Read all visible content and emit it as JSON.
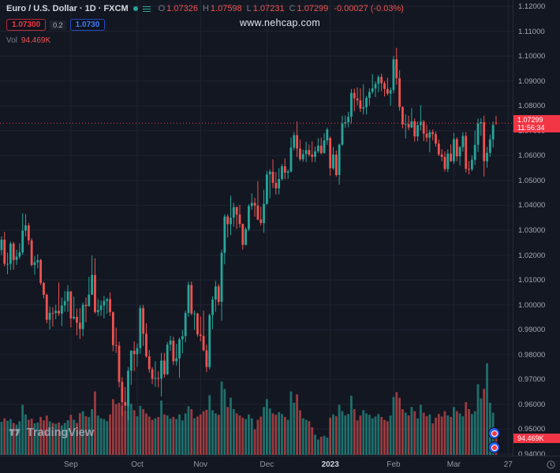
{
  "colors": {
    "bg": "#131722",
    "grid": "#202531",
    "up": "#26a69a",
    "down": "#ef5350",
    "up_vol": "rgba(38,166,154,0.62)",
    "down_vol": "rgba(239,83,80,0.62)",
    "accent": "#f23645",
    "buy_blue": "#2962ff",
    "text": "#d1d4dc",
    "muted": "#787b86",
    "axis_text": "#a6a9b3"
  },
  "header": {
    "symbol_title": "Euro / U.S. Dollar · 1D · FXCM",
    "ohlc": {
      "items": [
        {
          "label": "O",
          "value": "1.07326"
        },
        {
          "label": "H",
          "value": "1.07598"
        },
        {
          "label": "L",
          "value": "1.07231"
        },
        {
          "label": "C",
          "value": "1.07299"
        }
      ],
      "change": "-0.00027 (-0.03%)"
    },
    "trade_buttons": {
      "sell": "1.07300",
      "spread": "0.2",
      "buy": "1.0730"
    },
    "volume_label": "Vol",
    "volume_value": "94.469K",
    "watermark": "www.nehcap.com"
  },
  "price_axis": {
    "labels": [
      "1.12000",
      "1.11000",
      "1.10000",
      "1.09000",
      "1.08000",
      "1.07000",
      "1.06000",
      "1.05000",
      "1.04000",
      "1.03000",
      "1.02000",
      "1.01000",
      "1.00000",
      "0.99000",
      "0.98000",
      "0.97000",
      "0.96000",
      "0.95000",
      "0.94000"
    ]
  },
  "time_axis": {
    "labels": [
      {
        "label": "Sep",
        "i": 23
      },
      {
        "label": "Oct",
        "i": 45
      },
      {
        "label": "Nov",
        "i": 66
      },
      {
        "label": "Dec",
        "i": 88
      },
      {
        "label": "2023",
        "i": 109,
        "major": true
      },
      {
        "label": "Feb",
        "i": 130
      },
      {
        "label": "Mar",
        "i": 150
      },
      {
        "label": "27",
        "i": 168
      }
    ]
  },
  "price_marker": {
    "price": "1.07299",
    "countdown": "11:56:34"
  },
  "volume_marker": "94.469K",
  "footer": {
    "logo_text": "TradingView"
  },
  "chart_data": {
    "type": "candlestick+volume",
    "title": "Euro / U.S. Dollar 1D FXCM",
    "ylim": [
      0.94,
      1.12
    ],
    "slots": 170,
    "legend_last_bar": {
      "open": 1.07326,
      "high": 1.07598,
      "low": 1.07231,
      "close": 1.07299,
      "change": -0.00027,
      "change_pct": -0.03,
      "volume_k": 94.469
    },
    "candles": [
      [
        1.022,
        1.0275,
        1.02,
        1.0262
      ],
      [
        1.0262,
        1.0293,
        1.0155,
        1.0165
      ],
      [
        1.0165,
        1.021,
        1.0123,
        1.0165
      ],
      [
        1.0165,
        1.0254,
        1.014,
        1.0246
      ],
      [
        1.0246,
        1.0253,
        1.0141,
        1.018
      ],
      [
        1.018,
        1.0221,
        1.016,
        1.0194
      ],
      [
        1.0194,
        1.0248,
        1.0185,
        1.0211
      ],
      [
        1.0211,
        1.0368,
        1.0202,
        1.0298
      ],
      [
        1.0298,
        1.0365,
        1.0276,
        1.0319
      ],
      [
        1.0319,
        1.0329,
        1.0241,
        1.0259
      ],
      [
        1.0259,
        1.0268,
        1.0154,
        1.016
      ],
      [
        1.016,
        1.0196,
        1.0121,
        1.0171
      ],
      [
        1.0171,
        1.0203,
        1.0147,
        1.018
      ],
      [
        1.018,
        1.0185,
        1.0079,
        1.0088
      ],
      [
        1.0088,
        1.0092,
        1.0026,
        1.004
      ],
      [
        1.004,
        1.0046,
        0.9926,
        0.994
      ],
      [
        0.994,
        0.9993,
        0.9901,
        0.9968
      ],
      [
        0.9968,
        0.999,
        0.9912,
        0.9967
      ],
      [
        0.9967,
        1.0,
        0.9942,
        0.9976
      ],
      [
        0.9976,
        1.009,
        0.9956,
        0.9965
      ],
      [
        0.9965,
        1.0028,
        0.9914,
        0.9997
      ],
      [
        0.9997,
        1.0055,
        0.9972,
        1.0015
      ],
      [
        1.0015,
        1.0079,
        0.9972,
        1.0054
      ],
      [
        1.0054,
        1.0055,
        0.991,
        0.9945
      ],
      [
        0.9945,
        1.0033,
        0.994,
        0.9952
      ],
      [
        0.9952,
        0.9985,
        0.9878,
        0.9928
      ],
      [
        0.9928,
        0.9987,
        0.9863,
        0.9903
      ],
      [
        0.9903,
        1.0009,
        0.9874,
        1.0
      ],
      [
        1.0,
        1.0029,
        0.993,
        0.9995
      ],
      [
        0.9995,
        1.0113,
        0.9993,
        1.0041
      ],
      [
        1.0041,
        1.0198,
        1.004,
        1.012
      ],
      [
        1.012,
        1.0187,
        0.9965,
        0.9971
      ],
      [
        0.9971,
        1.0023,
        0.9955,
        0.9979
      ],
      [
        0.9979,
        1.0018,
        0.9955,
        0.9997
      ],
      [
        0.9997,
        1.0036,
        0.9945,
        1.0016
      ],
      [
        1.0016,
        1.0029,
        0.9964,
        1.0023
      ],
      [
        1.0023,
        1.005,
        0.9955,
        0.997
      ],
      [
        0.997,
        0.9974,
        0.9813,
        0.9838
      ],
      [
        0.9838,
        0.9908,
        0.9807,
        0.9836
      ],
      [
        0.9836,
        0.9852,
        0.9668,
        0.969
      ],
      [
        0.969,
        0.9709,
        0.9554,
        0.9609
      ],
      [
        0.9609,
        0.967,
        0.957,
        0.9594
      ],
      [
        0.9594,
        0.975,
        0.9535,
        0.9735
      ],
      [
        0.9735,
        0.9817,
        0.9678,
        0.9815
      ],
      [
        0.9815,
        0.9853,
        0.9733,
        0.9802
      ],
      [
        0.9802,
        0.9844,
        0.9751,
        0.9826
      ],
      [
        0.9826,
        0.9999,
        0.9804,
        0.9987
      ],
      [
        0.9987,
        1.0,
        0.9835,
        0.9884
      ],
      [
        0.9884,
        0.9926,
        0.9787,
        0.9793
      ],
      [
        0.9793,
        0.9818,
        0.9727,
        0.9741
      ],
      [
        0.9741,
        0.975,
        0.9681,
        0.9703
      ],
      [
        0.9703,
        0.9773,
        0.967,
        0.9706
      ],
      [
        0.9706,
        0.9733,
        0.9668,
        0.9703
      ],
      [
        0.9703,
        0.9807,
        0.9632,
        0.9776
      ],
      [
        0.9776,
        0.9807,
        0.9707,
        0.9721
      ],
      [
        0.9721,
        0.9851,
        0.9718,
        0.984
      ],
      [
        0.984,
        0.9875,
        0.9815,
        0.9856
      ],
      [
        0.9856,
        0.9872,
        0.9758,
        0.9773
      ],
      [
        0.9773,
        0.9843,
        0.9756,
        0.9785
      ],
      [
        0.9785,
        0.9868,
        0.9706,
        0.9861
      ],
      [
        0.9861,
        0.9899,
        0.9806,
        0.9874
      ],
      [
        0.9874,
        0.9976,
        0.9849,
        0.9967
      ],
      [
        0.9967,
        1.0093,
        0.9952,
        1.008
      ],
      [
        1.008,
        1.0094,
        0.9957,
        0.9965
      ],
      [
        0.9965,
        0.9977,
        0.9899,
        0.9965
      ],
      [
        0.9965,
        0.9968,
        0.9872,
        0.9881
      ],
      [
        0.9881,
        0.9953,
        0.9853,
        0.9875
      ],
      [
        0.9875,
        0.9976,
        0.9813,
        0.9817
      ],
      [
        0.9817,
        0.984,
        0.973,
        0.975
      ],
      [
        0.975,
        0.9965,
        0.9741,
        0.9959
      ],
      [
        0.9959,
        1.0034,
        0.9903,
        1.0021
      ],
      [
        1.0021,
        1.0096,
        0.9972,
        1.0074
      ],
      [
        1.0074,
        1.0084,
        0.9998,
        1.0012
      ],
      [
        1.0012,
        1.0222,
        0.9936,
        1.0209
      ],
      [
        1.0209,
        1.0364,
        1.0163,
        1.0355
      ],
      [
        1.0355,
        1.0365,
        1.0271,
        1.0324
      ],
      [
        1.0324,
        1.0439,
        1.028,
        1.035
      ],
      [
        1.035,
        1.041,
        1.0314,
        1.0393
      ],
      [
        1.0393,
        1.0395,
        1.0305,
        1.0363
      ],
      [
        1.0363,
        1.0402,
        1.031,
        1.0325
      ],
      [
        1.0325,
        1.0327,
        1.0222,
        1.0241
      ],
      [
        1.0241,
        1.0312,
        1.0239,
        1.0304
      ],
      [
        1.0304,
        1.0405,
        1.0296,
        1.0397
      ],
      [
        1.0397,
        1.0448,
        1.0382,
        1.041
      ],
      [
        1.041,
        1.043,
        1.0354,
        1.0399
      ],
      [
        1.0399,
        1.0497,
        1.034,
        1.0343
      ],
      [
        1.0343,
        1.0394,
        1.0319,
        1.0329
      ],
      [
        1.0329,
        1.0463,
        1.029,
        1.0406
      ],
      [
        1.0406,
        1.0539,
        1.0402,
        1.0524
      ],
      [
        1.0524,
        1.0545,
        1.0428,
        1.0535
      ],
      [
        1.0535,
        1.0585,
        1.047,
        1.049
      ],
      [
        1.049,
        1.0533,
        1.0443,
        1.0468
      ],
      [
        1.0468,
        1.0549,
        1.0444,
        1.0506
      ],
      [
        1.0506,
        1.0566,
        1.0499,
        1.0557
      ],
      [
        1.0557,
        1.0588,
        1.0505,
        1.0531
      ],
      [
        1.0531,
        1.0545,
        1.0506,
        1.0536
      ],
      [
        1.0536,
        1.0673,
        1.0532,
        1.0632
      ],
      [
        1.0632,
        1.0695,
        1.0622,
        1.0682
      ],
      [
        1.0682,
        1.0737,
        1.0594,
        1.0628
      ],
      [
        1.0628,
        1.0664,
        1.0578,
        1.0585
      ],
      [
        1.0585,
        1.0624,
        1.0575,
        1.0606
      ],
      [
        1.0606,
        1.0656,
        1.0574,
        1.0622
      ],
      [
        1.0622,
        1.0644,
        1.0596,
        1.0604
      ],
      [
        1.0604,
        1.0657,
        1.0574,
        1.0595
      ],
      [
        1.0595,
        1.0636,
        1.0574,
        1.0617
      ],
      [
        1.0617,
        1.067,
        1.061,
        1.064
      ],
      [
        1.064,
        1.0672,
        1.0605,
        1.061
      ],
      [
        1.061,
        1.069,
        1.0608,
        1.0661
      ],
      [
        1.0661,
        1.0713,
        1.0643,
        1.0705
      ],
      [
        1.067,
        1.0676,
        1.0519,
        1.0549
      ],
      [
        1.0549,
        1.0635,
        1.0542,
        1.0604
      ],
      [
        1.0604,
        1.0621,
        1.0515,
        1.0522
      ],
      [
        1.0522,
        1.0648,
        1.0483,
        1.0644
      ],
      [
        1.0644,
        1.076,
        1.0639,
        1.0729
      ],
      [
        1.0729,
        1.0761,
        1.0711,
        1.0734
      ],
      [
        1.0734,
        1.0776,
        1.0714,
        1.0756
      ],
      [
        1.0756,
        1.0868,
        1.0729,
        1.0852
      ],
      [
        1.0852,
        1.0869,
        1.0778,
        1.083
      ],
      [
        1.083,
        1.0874,
        1.0802,
        1.0822
      ],
      [
        1.0822,
        1.087,
        1.0775,
        1.0789
      ],
      [
        1.0789,
        1.0887,
        1.0766,
        1.0794
      ],
      [
        1.0794,
        1.084,
        1.0766,
        1.0832
      ],
      [
        1.0832,
        1.087,
        1.0802,
        1.0856
      ],
      [
        1.0856,
        1.0927,
        1.0848,
        1.087
      ],
      [
        1.087,
        1.0898,
        1.0835,
        1.0888
      ],
      [
        1.0888,
        1.0923,
        1.0855,
        1.0916
      ],
      [
        1.0916,
        1.0929,
        1.0858,
        1.0891
      ],
      [
        1.0891,
        1.09,
        1.0838,
        1.0868
      ],
      [
        1.0868,
        1.0913,
        1.0842,
        1.0849
      ],
      [
        1.0849,
        1.0874,
        1.0801,
        1.0863
      ],
      [
        1.0863,
        1.1001,
        1.085,
        1.0987
      ],
      [
        1.0987,
        1.1033,
        1.0885,
        1.0911
      ],
      [
        1.0911,
        1.0943,
        1.078,
        1.0795
      ],
      [
        1.0795,
        1.0798,
        1.0709,
        1.0726
      ],
      [
        1.0726,
        1.0766,
        1.0669,
        1.0727
      ],
      [
        1.0727,
        1.076,
        1.0702,
        1.0713
      ],
      [
        1.0713,
        1.0791,
        1.071,
        1.0738
      ],
      [
        1.0738,
        1.0749,
        1.0656,
        1.0677
      ],
      [
        1.0677,
        1.0737,
        1.0657,
        1.0722
      ],
      [
        1.0722,
        1.0803,
        1.0701,
        1.0736
      ],
      [
        1.0736,
        1.0743,
        1.0658,
        1.0688
      ],
      [
        1.0688,
        1.0723,
        1.0655,
        1.0672
      ],
      [
        1.0672,
        1.0704,
        1.0613,
        1.0694
      ],
      [
        1.0694,
        1.0705,
        1.0661,
        1.0686
      ],
      [
        1.0686,
        1.0697,
        1.0636,
        1.0648
      ],
      [
        1.0648,
        1.0664,
        1.0598,
        1.0605
      ],
      [
        1.0605,
        1.0625,
        1.0577,
        1.0595
      ],
      [
        1.0595,
        1.0617,
        1.0536,
        1.0546
      ],
      [
        1.0546,
        1.0625,
        1.0533,
        1.0608
      ],
      [
        1.0608,
        1.0645,
        1.0575,
        1.0577
      ],
      [
        1.0577,
        1.0691,
        1.0565,
        1.0666
      ],
      [
        1.0666,
        1.0674,
        1.0577,
        1.0597
      ],
      [
        1.0597,
        1.0638,
        1.056,
        1.0634
      ],
      [
        1.0634,
        1.0694,
        1.0616,
        1.0679
      ],
      [
        1.0679,
        1.0695,
        1.0532,
        1.0547
      ],
      [
        1.0547,
        1.0578,
        1.0524,
        1.0545
      ],
      [
        1.0545,
        1.06,
        1.0537,
        1.0583
      ],
      [
        1.0583,
        1.0701,
        1.0562,
        1.0643
      ],
      [
        1.0643,
        1.0749,
        1.0614,
        1.0729
      ],
      [
        1.0729,
        1.075,
        1.0679,
        1.0734
      ],
      [
        1.0734,
        1.076,
        1.0516,
        1.0577
      ],
      [
        1.0577,
        1.0635,
        1.0551,
        1.0611
      ],
      [
        1.0611,
        1.0685,
        1.0595,
        1.0665
      ],
      [
        1.0665,
        1.0737,
        1.0632,
        1.0723
      ],
      [
        1.07326,
        1.07598,
        1.07231,
        1.07299
      ]
    ],
    "volumes_k": [
      155,
      172,
      160,
      168,
      150,
      142,
      158,
      235,
      190,
      165,
      170,
      148,
      152,
      178,
      162,
      185,
      158,
      150,
      146,
      152,
      138,
      150,
      163,
      188,
      165,
      150,
      196,
      205,
      182,
      178,
      215,
      298,
      185,
      172,
      168,
      158,
      190,
      262,
      238,
      245,
      232,
      205,
      285,
      240,
      210,
      182,
      230,
      215,
      195,
      180,
      165,
      172,
      178,
      255,
      190,
      185,
      170,
      178,
      168,
      190,
      162,
      195,
      228,
      215,
      172,
      180,
      190,
      205,
      212,
      280,
      210,
      195,
      188,
      345,
      310,
      225,
      268,
      215,
      195,
      185,
      175,
      168,
      190,
      172,
      120,
      165,
      180,
      225,
      262,
      218,
      195,
      188,
      200,
      192,
      178,
      165,
      298,
      245,
      285,
      210,
      172,
      165,
      158,
      130,
      95,
      72,
      85,
      90,
      82,
      175,
      190,
      182,
      235,
      205,
      185,
      192,
      278,
      215,
      162,
      185,
      210,
      195,
      188,
      172,
      180,
      192,
      178,
      165,
      158,
      185,
      272,
      295,
      268,
      215,
      198,
      185,
      225,
      205,
      172,
      235,
      198,
      182,
      190,
      148,
      175,
      192,
      180,
      205,
      185,
      178,
      225,
      205,
      195,
      182,
      248,
      215,
      192,
      205,
      332,
      265,
      310,
      430,
      245,
      198,
      94.469
    ]
  }
}
